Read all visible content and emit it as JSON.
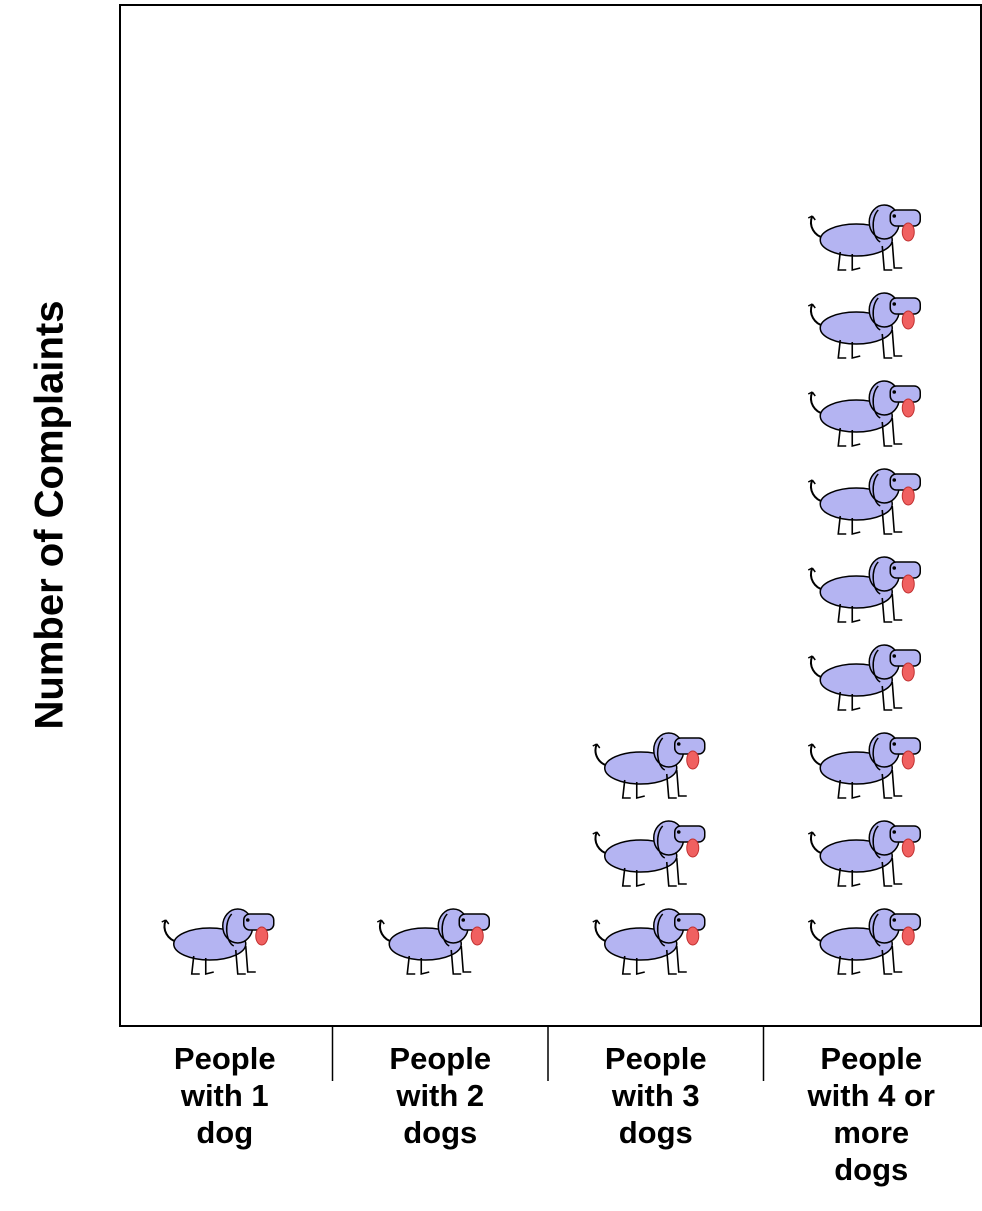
{
  "chart_data": {
    "type": "pictograph",
    "y_label": "Number of Complaints",
    "categories": [
      "People with 1 dog",
      "People with 2 dogs",
      "People with 3 dogs",
      "People with 4 or more dogs"
    ],
    "values": [
      1,
      1,
      3,
      9
    ],
    "color": "#b4b4f2"
  }
}
